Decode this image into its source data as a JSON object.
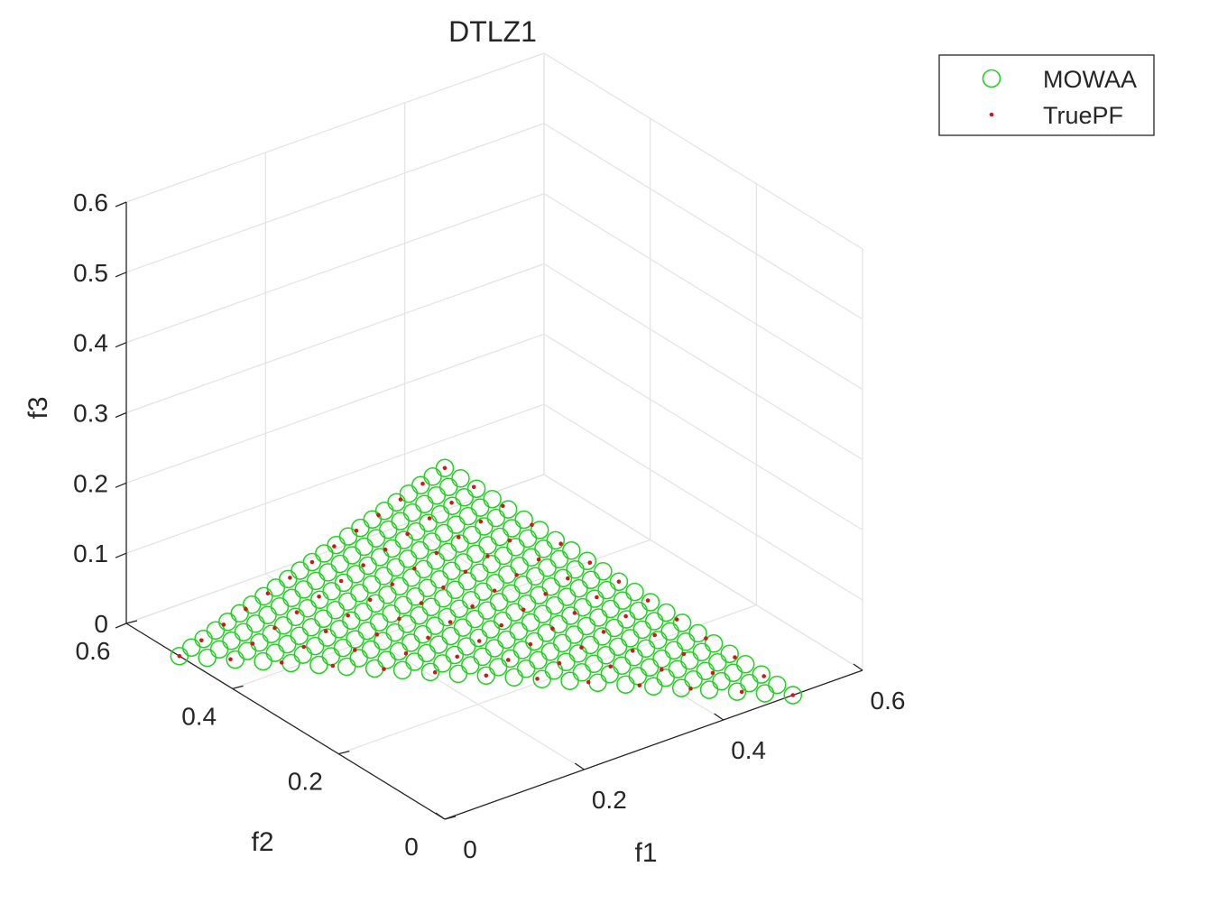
{
  "chart_data": {
    "type": "scatter",
    "title": "DTLZ1",
    "xlabel": "f1",
    "ylabel": "f2",
    "zlabel": "f3",
    "xlim": [
      0,
      0.6
    ],
    "ylim": [
      0,
      0.6
    ],
    "zlim": [
      0,
      0.6
    ],
    "x_ticks": [
      {
        "v": 0,
        "label": "0"
      },
      {
        "v": 0.2,
        "label": "0.2"
      },
      {
        "v": 0.4,
        "label": "0.4"
      },
      {
        "v": 0.6,
        "label": "0.6"
      }
    ],
    "y_ticks": [
      {
        "v": 0,
        "label": "0"
      },
      {
        "v": 0.2,
        "label": "0.2"
      },
      {
        "v": 0.4,
        "label": "0.4"
      },
      {
        "v": 0.6,
        "label": "0.6"
      }
    ],
    "z_ticks": [
      {
        "v": 0,
        "label": "0"
      },
      {
        "v": 0.1,
        "label": "0.1"
      },
      {
        "v": 0.2,
        "label": "0.2"
      },
      {
        "v": 0.3,
        "label": "0.3"
      },
      {
        "v": 0.4,
        "label": "0.4"
      },
      {
        "v": 0.5,
        "label": "0.5"
      },
      {
        "v": 0.6,
        "label": "0.6"
      }
    ],
    "grid": true,
    "view": "3d-isometric",
    "legend_position": "top-right",
    "series": [
      {
        "name": "MOWAA",
        "marker": "circle-open",
        "color": "#22d022",
        "grid_divisions": 22,
        "sum": 0.5
      },
      {
        "name": "TruePF",
        "marker": "dot",
        "color": "#cc1a1a",
        "grid_divisions": 12,
        "sum": 0.5
      }
    ]
  }
}
